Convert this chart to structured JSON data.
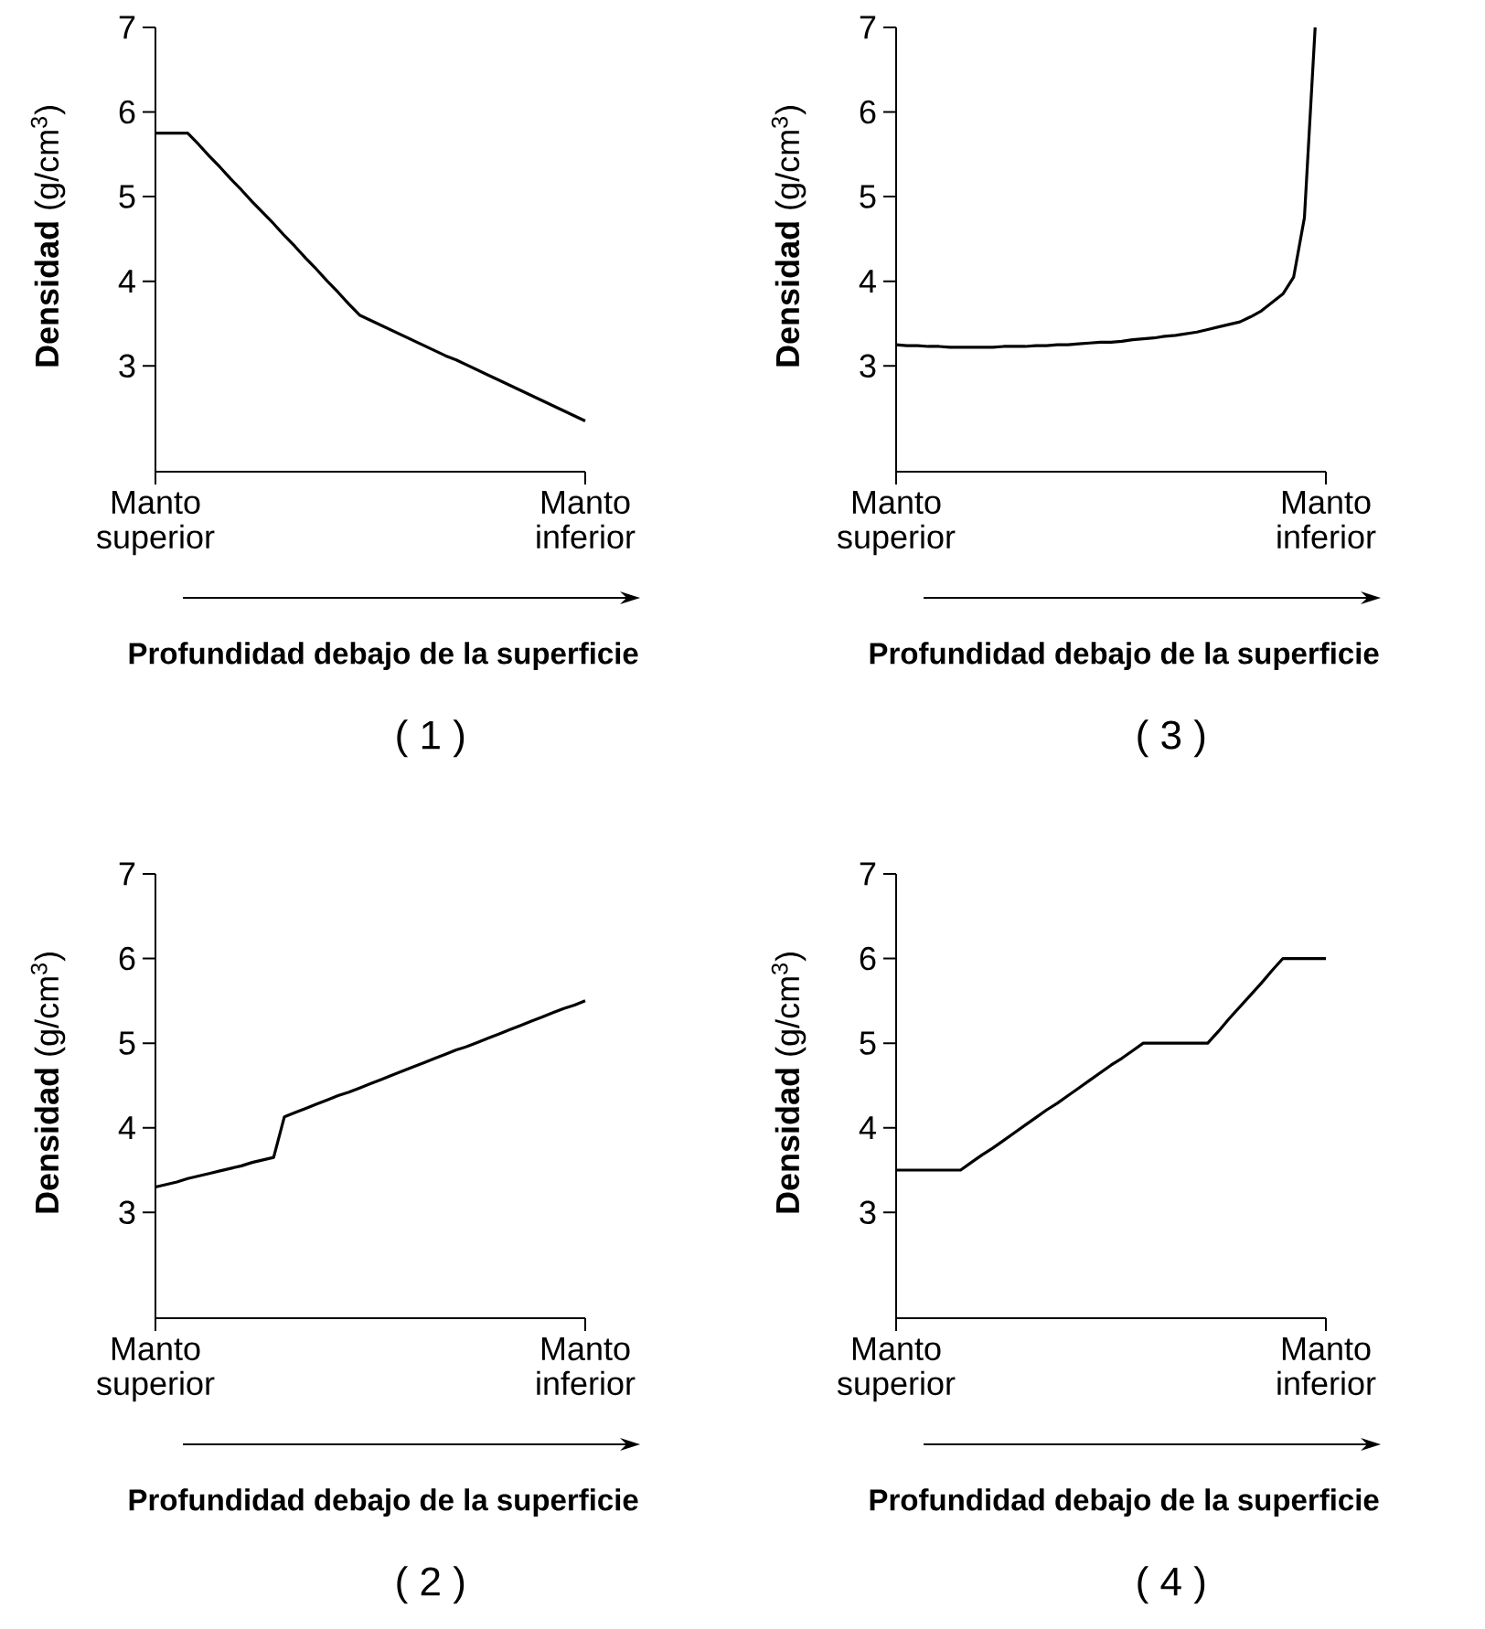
{
  "chart_data": [
    {
      "type": "line",
      "title": "( 1 )",
      "xlabel": "Profundidad debajo de la superficie",
      "ylabel": "**Densidad** (g/cm$^{3}$)",
      "color": "#000000",
      "ylim": [
        1.75,
        7
      ],
      "yticks": [
        3,
        4,
        5,
        6,
        7
      ],
      "categories": [
        "Manto superior",
        null,
        null,
        null,
        null,
        null,
        null,
        null,
        null,
        null,
        null,
        null,
        null,
        null,
        null,
        null,
        null,
        null,
        null,
        null,
        null,
        null,
        null,
        null,
        null,
        null,
        null,
        null,
        null,
        null,
        null,
        null,
        null,
        null,
        null,
        null,
        null,
        null,
        null,
        null,
        "Manto inferior"
      ],
      "values": [
        5.75,
        5.75,
        5.75,
        5.75,
        5.62,
        5.48,
        5.35,
        5.21,
        5.08,
        4.94,
        4.81,
        4.68,
        4.54,
        4.41,
        4.27,
        4.14,
        4.0,
        3.87,
        3.73,
        3.6,
        3.54,
        3.48,
        3.42,
        3.36,
        3.3,
        3.24,
        3.18,
        3.12,
        3.07,
        3.01,
        2.95,
        2.89,
        2.83,
        2.77,
        2.71,
        2.65,
        2.59,
        2.53,
        2.47,
        2.41,
        2.35
      ]
    },
    {
      "type": "line",
      "title": "( 3 )",
      "xlabel": "Profundidad debajo de la superficie",
      "ylabel": "**Densidad** (g/cm$^{3}$)",
      "color": "#000000",
      "ylim": [
        1.75,
        7
      ],
      "yticks": [
        3,
        4,
        5,
        6,
        7
      ],
      "categories": [
        "Manto superior",
        null,
        null,
        null,
        null,
        null,
        null,
        null,
        null,
        null,
        null,
        null,
        null,
        null,
        null,
        null,
        null,
        null,
        null,
        null,
        null,
        null,
        null,
        null,
        null,
        null,
        null,
        null,
        null,
        null,
        null,
        null,
        null,
        null,
        null,
        null,
        null,
        null,
        null,
        null,
        "Manto inferior"
      ],
      "values": [
        3.25,
        3.24,
        3.24,
        3.23,
        3.23,
        3.22,
        3.22,
        3.22,
        3.22,
        3.22,
        3.23,
        3.23,
        3.23,
        3.24,
        3.24,
        3.25,
        3.25,
        3.26,
        3.27,
        3.28,
        3.28,
        3.29,
        3.31,
        3.32,
        3.33,
        3.35,
        3.36,
        3.38,
        3.4,
        3.43,
        3.46,
        3.49,
        3.52,
        3.58,
        3.65,
        3.75,
        3.85,
        4.05,
        4.75,
        7.0,
        null
      ]
    },
    {
      "type": "line",
      "title": "( 2 )",
      "xlabel": "Profundidad debajo de la superficie",
      "ylabel": "**Densidad** (g/cm$^{3}$)",
      "color": "#000000",
      "ylim": [
        1.75,
        7
      ],
      "yticks": [
        3,
        4,
        5,
        6,
        7
      ],
      "categories": [
        "Manto superior",
        null,
        null,
        null,
        null,
        null,
        null,
        null,
        null,
        null,
        null,
        null,
        null,
        null,
        null,
        null,
        null,
        null,
        null,
        null,
        null,
        null,
        null,
        null,
        null,
        null,
        null,
        null,
        null,
        null,
        null,
        null,
        null,
        null,
        null,
        null,
        null,
        null,
        null,
        null,
        "Manto inferior"
      ],
      "values": [
        3.3,
        3.33,
        3.36,
        3.4,
        3.43,
        3.46,
        3.49,
        3.52,
        3.55,
        3.59,
        3.62,
        3.65,
        4.13,
        4.18,
        4.23,
        4.28,
        4.33,
        4.38,
        4.42,
        4.47,
        4.52,
        4.57,
        4.62,
        4.67,
        4.72,
        4.77,
        4.82,
        4.87,
        4.92,
        4.96,
        5.01,
        5.06,
        5.11,
        5.16,
        5.21,
        5.26,
        5.31,
        5.36,
        5.41,
        5.45,
        5.5
      ]
    },
    {
      "type": "line",
      "title": "( 4 )",
      "xlabel": "Profundidad debajo de la superficie",
      "ylabel": "**Densidad** (g/cm$^{3}$)",
      "color": "#000000",
      "ylim": [
        1.75,
        7
      ],
      "yticks": [
        3,
        4,
        5,
        6,
        7
      ],
      "categories": [
        "Manto superior",
        null,
        null,
        null,
        null,
        null,
        null,
        null,
        null,
        null,
        null,
        null,
        null,
        null,
        null,
        null,
        null,
        null,
        null,
        null,
        null,
        null,
        null,
        null,
        null,
        null,
        null,
        null,
        null,
        null,
        null,
        null,
        null,
        null,
        null,
        null,
        null,
        null,
        null,
        null,
        "Manto inferior"
      ],
      "values": [
        3.5,
        3.5,
        3.5,
        3.5,
        3.5,
        3.5,
        3.5,
        3.59,
        3.68,
        3.76,
        3.85,
        3.94,
        4.03,
        4.12,
        4.21,
        4.29,
        4.38,
        4.47,
        4.56,
        4.65,
        4.74,
        4.82,
        4.91,
        5.0,
        5.0,
        5.0,
        5.0,
        5.0,
        5.0,
        5.0,
        5.14,
        5.29,
        5.43,
        5.57,
        5.71,
        5.86,
        6.0,
        6.0,
        6.0,
        6.0,
        6.0
      ]
    }
  ]
}
